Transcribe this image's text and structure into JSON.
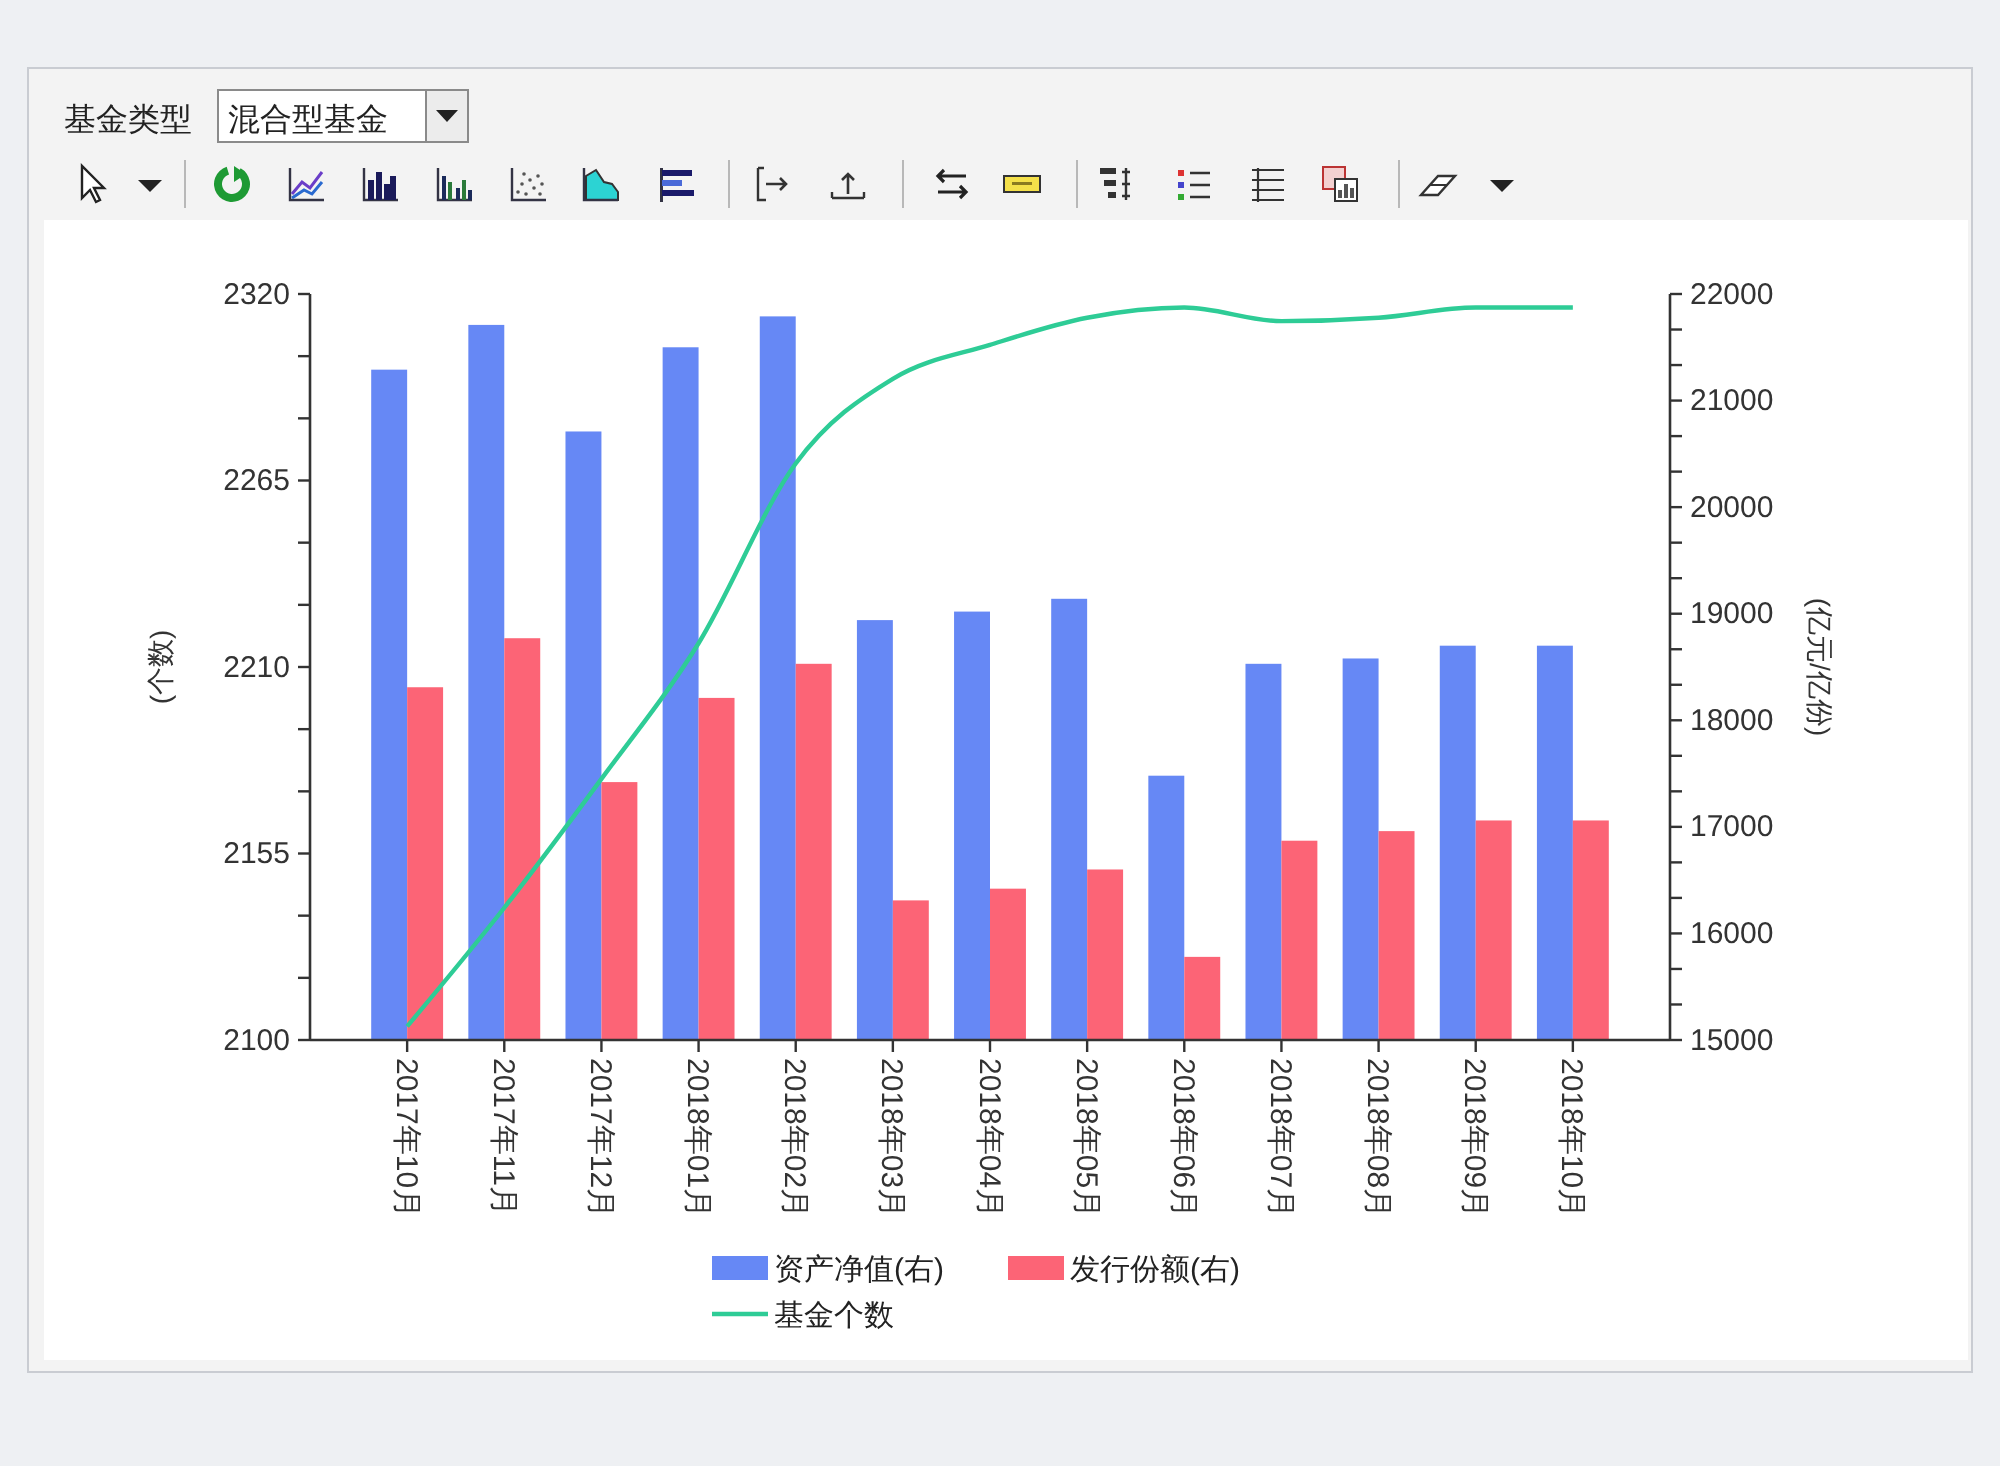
{
  "chart_data": {
    "type": "bar",
    "ylabel": "(个数)",
    "y2label": "(亿元/亿份)",
    "categories": [
      "2017年10月",
      "2017年11月",
      "2017年12月",
      "2018年01月",
      "2018年02月",
      "2018年03月",
      "2018年04月",
      "2018年05月",
      "2018年06月",
      "2018年07月",
      "2018年08月",
      "2018年09月",
      "2018年10月"
    ],
    "series": [
      {
        "name": "资产净值(右)",
        "axis": "y2",
        "color": "#6688f5",
        "values": [
          21290,
          21710,
          20710,
          21500,
          21790,
          18940,
          19020,
          19140,
          17480,
          18530,
          18580,
          18700,
          18700
        ]
      },
      {
        "name": "发行份额(右)",
        "axis": "y2",
        "color": "#fc6476",
        "values": [
          18310,
          18770,
          17420,
          18210,
          18530,
          16310,
          16420,
          16600,
          15780,
          16870,
          16960,
          17060,
          17060
        ]
      },
      {
        "name": "基金个数",
        "type": "line",
        "color": "#2ecc96",
        "values": [
          2104,
          2139,
          2177,
          2217,
          2270,
          2295,
          2305,
          2313,
          2316,
          2312,
          2313,
          2316,
          2316
        ]
      }
    ],
    "ylim": [
      2100,
      2320
    ],
    "yticks": [
      2100,
      {
        "value": 2118.33,
        "label": null
      },
      {
        "value": 2136.67,
        "label": null
      },
      2155,
      {
        "value": 2173.33,
        "label": null
      },
      {
        "value": 2191.67,
        "label": null
      },
      2210,
      {
        "value": 2228.33,
        "label": null
      },
      {
        "value": 2246.67,
        "label": null
      },
      2265,
      {
        "value": 2283.33,
        "label": null
      },
      {
        "value": 2301.67,
        "label": null
      },
      2320
    ],
    "y2lim": [
      15000,
      22000
    ],
    "y2ticks": [
      15000,
      {
        "value": 15333.33,
        "label": null
      },
      {
        "value": 15666.67,
        "label": null
      },
      16000,
      {
        "value": 16333.33,
        "label": null
      },
      {
        "value": 16666.67,
        "label": null
      },
      17000,
      {
        "value": 17333.33,
        "label": null
      },
      {
        "value": 17666.67,
        "label": null
      },
      18000,
      {
        "value": 18333.33,
        "label": null
      },
      {
        "value": 18666.67,
        "label": null
      },
      19000,
      {
        "value": 19333.33,
        "label": null
      },
      {
        "value": 19666.67,
        "label": null
      },
      20000,
      {
        "value": 20333.33,
        "label": null
      },
      {
        "value": 20666.67,
        "label": null
      },
      21000,
      {
        "value": 21333.33,
        "label": null
      },
      {
        "value": 21666.67,
        "label": null
      },
      22000
    ],
    "legend": "bottom",
    "annotations": [
      "基金类型",
      "混合型基金"
    ]
  }
}
